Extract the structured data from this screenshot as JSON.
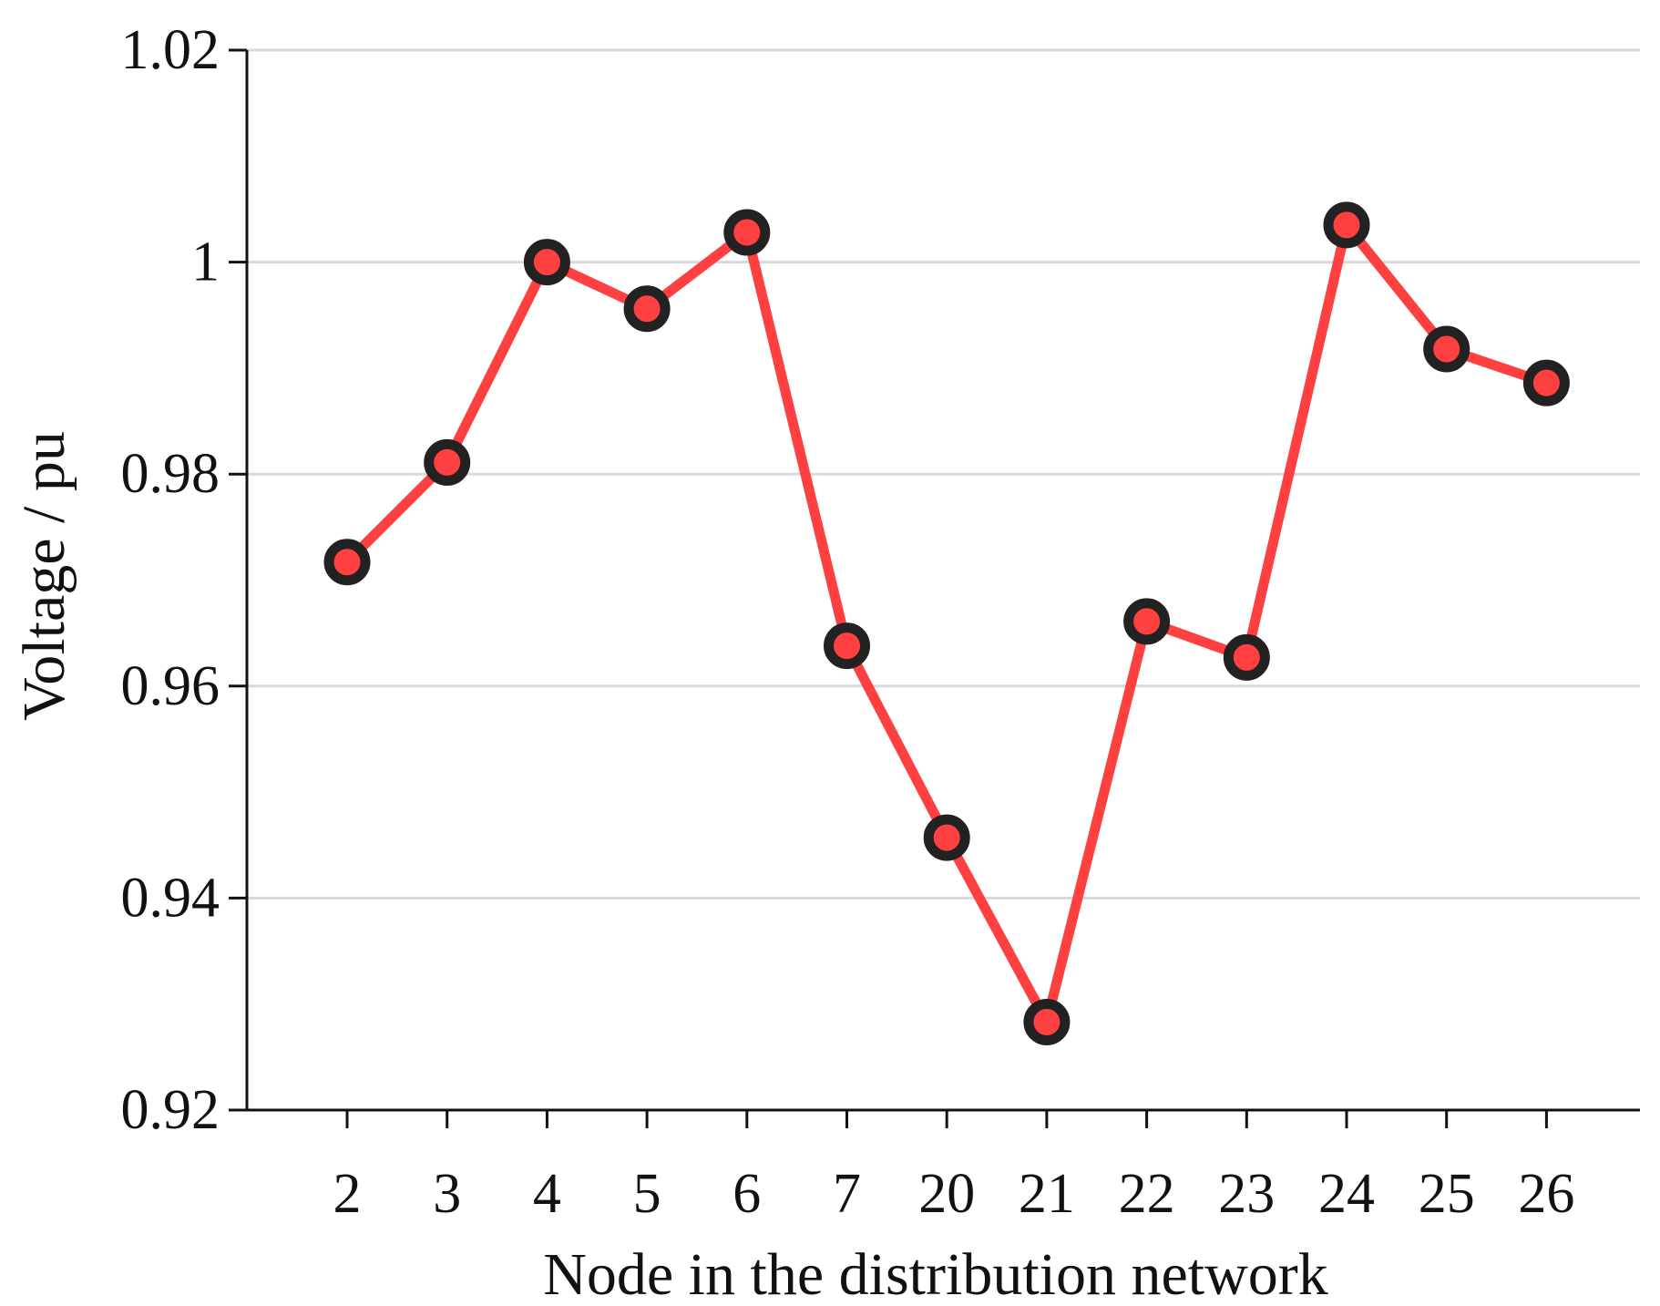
{
  "chart_data": {
    "type": "line",
    "title": "",
    "xlabel": "Node in the distribution network",
    "ylabel": "Voltage / pu",
    "categories": [
      "2",
      "3",
      "4",
      "5",
      "6",
      "7",
      "20",
      "21",
      "22",
      "23",
      "24",
      "25",
      "26"
    ],
    "series": [
      {
        "values": [
          0.9717,
          0.9811,
          1.0,
          0.9956,
          1.0028,
          0.9638,
          0.9457,
          0.9283,
          0.9661,
          0.9627,
          1.0035,
          0.9918,
          0.9886
        ],
        "color": "#ff4040"
      }
    ],
    "ylim": [
      0.92,
      1.02
    ],
    "yticks": [
      0.92,
      0.94,
      0.96,
      0.98,
      1.0,
      1.02
    ],
    "ytick_labels": [
      "0.92",
      "0.94",
      "0.96",
      "0.98",
      "1",
      "1.02"
    ],
    "grid": "horizontal",
    "marker": "circle",
    "marker_edge_color": "#222222",
    "grid_color": "#d9d9d9",
    "axis_color": "#111111"
  }
}
